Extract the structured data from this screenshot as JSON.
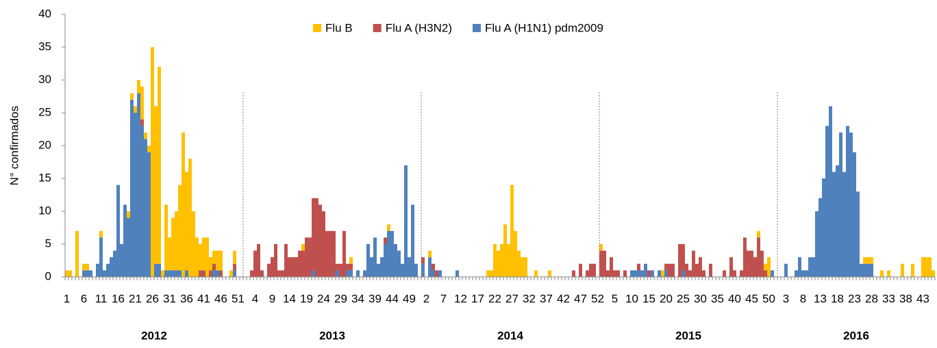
{
  "chart_data": {
    "type": "stacked_bar",
    "y_label": "N° confirmados",
    "ylim": [
      0,
      40
    ],
    "yticks": [
      0,
      5,
      10,
      15,
      20,
      25,
      30,
      35,
      40
    ],
    "legend_position": "top",
    "year_labels": [
      "2012",
      "2013",
      "2014",
      "2015",
      "2016"
    ],
    "categories": [
      "1",
      null,
      null,
      null,
      null,
      "6",
      null,
      null,
      null,
      null,
      "11",
      null,
      null,
      null,
      null,
      "16",
      null,
      null,
      null,
      null,
      "21",
      null,
      null,
      null,
      null,
      "26",
      null,
      null,
      null,
      null,
      "31",
      null,
      null,
      null,
      null,
      "36",
      null,
      null,
      null,
      null,
      "41",
      null,
      null,
      null,
      null,
      "46",
      null,
      null,
      null,
      null,
      "51",
      null,
      null,
      null,
      null,
      "4",
      null,
      null,
      null,
      null,
      "9",
      null,
      null,
      null,
      null,
      "14",
      null,
      null,
      null,
      null,
      "19",
      null,
      null,
      null,
      null,
      "24",
      null,
      null,
      null,
      null,
      "29",
      null,
      null,
      null,
      null,
      "34",
      null,
      null,
      null,
      null,
      "39",
      null,
      null,
      null,
      null,
      "44",
      null,
      null,
      null,
      null,
      "49",
      null,
      null,
      null,
      null,
      "2",
      null,
      null,
      null,
      null,
      "7",
      null,
      null,
      null,
      null,
      "12",
      null,
      null,
      null,
      null,
      "17",
      null,
      null,
      null,
      null,
      "22",
      null,
      null,
      null,
      null,
      "27",
      null,
      null,
      null,
      null,
      "32",
      null,
      null,
      null,
      null,
      "37",
      null,
      null,
      null,
      null,
      "42",
      null,
      null,
      null,
      null,
      "47",
      null,
      null,
      null,
      null,
      "52",
      null,
      null,
      null,
      null,
      "5",
      null,
      null,
      null,
      null,
      "10",
      null,
      null,
      null,
      null,
      "15",
      null,
      null,
      null,
      null,
      "20",
      null,
      null,
      null,
      null,
      "25",
      null,
      null,
      null,
      null,
      "30",
      null,
      null,
      null,
      null,
      "35",
      null,
      null,
      null,
      null,
      "40",
      null,
      null,
      null,
      null,
      "45",
      null,
      null,
      null,
      null,
      "50",
      null,
      null,
      null,
      null,
      "3",
      null,
      null,
      null,
      null,
      "8",
      null,
      null,
      null,
      null,
      "13",
      null,
      null,
      null,
      null,
      "18",
      null,
      null,
      null,
      null,
      "23",
      null,
      null,
      null,
      null,
      "28",
      null,
      null,
      null,
      null,
      "33",
      null,
      null,
      null,
      null,
      "38",
      null,
      null,
      null,
      null,
      "43",
      null,
      null,
      null
    ],
    "series": [
      {
        "name": "Flu B",
        "color": "#FFC000",
        "values": [
          1,
          1,
          0,
          7,
          0,
          1,
          1,
          0,
          0,
          0,
          1,
          0,
          0,
          0,
          0,
          0,
          0,
          0,
          1,
          1,
          1,
          2,
          5,
          1,
          1,
          35,
          24,
          30,
          1,
          10,
          5,
          8,
          9,
          13,
          22,
          15,
          18,
          10,
          6,
          4,
          5,
          6,
          2,
          2,
          3,
          3,
          0,
          0,
          1,
          2,
          0,
          0,
          0,
          0,
          0,
          0,
          0,
          0,
          0,
          0,
          0,
          0,
          0,
          0,
          0,
          0,
          0,
          0,
          0,
          1,
          0,
          0,
          0,
          0,
          0,
          0,
          0,
          0,
          0,
          0,
          0,
          0,
          0,
          1,
          0,
          0,
          0,
          0,
          0,
          0,
          0,
          0,
          0,
          0,
          1,
          0,
          0,
          0,
          0,
          0,
          0,
          0,
          0,
          0,
          0,
          0,
          1,
          0,
          0,
          0,
          0,
          0,
          0,
          0,
          0,
          0,
          0,
          0,
          0,
          0,
          0,
          0,
          0,
          1,
          1,
          5,
          4,
          5,
          8,
          5,
          14,
          7,
          4,
          3,
          3,
          0,
          0,
          1,
          0,
          0,
          0,
          1,
          0,
          0,
          0,
          0,
          0,
          0,
          0,
          0,
          0,
          0,
          0,
          0,
          0,
          0,
          1,
          0,
          0,
          0,
          0,
          0,
          0,
          0,
          0,
          0,
          0,
          0,
          0,
          0,
          0,
          0,
          0,
          0,
          1,
          0,
          0,
          0,
          0,
          0,
          0,
          0,
          0,
          0,
          0,
          0,
          0,
          0,
          0,
          0,
          0,
          0,
          0,
          0,
          0,
          0,
          0,
          0,
          0,
          0,
          0,
          0,
          1,
          0,
          1,
          3,
          0,
          0,
          0,
          0,
          0,
          0,
          0,
          0,
          0,
          0,
          0,
          0,
          0,
          0,
          0,
          0,
          0,
          0,
          0,
          0,
          0,
          0,
          0,
          0,
          0,
          0,
          0,
          1,
          1,
          1,
          0,
          0,
          1,
          0,
          1,
          0,
          0,
          0,
          2,
          0,
          0,
          2,
          0,
          0,
          3,
          3,
          3,
          1
        ]
      },
      {
        "name": "Flu A (H3N2)",
        "color": "#C0504D",
        "values": [
          0,
          0,
          0,
          0,
          0,
          0,
          0,
          0,
          0,
          0,
          0,
          0,
          0,
          0,
          0,
          0,
          0,
          0,
          0,
          0,
          0,
          0,
          1,
          0,
          0,
          0,
          0,
          0,
          0,
          0,
          0,
          0,
          0,
          0,
          0,
          0,
          0,
          0,
          0,
          1,
          1,
          0,
          1,
          1,
          0,
          1,
          0,
          0,
          0,
          1,
          0,
          0,
          0,
          0,
          1,
          4,
          5,
          1,
          0,
          2,
          3,
          5,
          1,
          1,
          5,
          3,
          3,
          3,
          4,
          4,
          6,
          6,
          11,
          12,
          11,
          10,
          7,
          7,
          7,
          1,
          2,
          7,
          1,
          1,
          0,
          0,
          0,
          0,
          0,
          0,
          0,
          0,
          0,
          1,
          0,
          0,
          0,
          0,
          0,
          0,
          0,
          0,
          0,
          0,
          1,
          0,
          0,
          1,
          1,
          0,
          0,
          0,
          0,
          0,
          0,
          0,
          0,
          0,
          0,
          0,
          0,
          0,
          0,
          0,
          0,
          0,
          0,
          0,
          0,
          0,
          0,
          0,
          0,
          0,
          0,
          0,
          0,
          0,
          0,
          0,
          0,
          0,
          0,
          0,
          0,
          0,
          0,
          0,
          1,
          0,
          2,
          0,
          1,
          2,
          2,
          0,
          4,
          4,
          1,
          3,
          1,
          1,
          0,
          1,
          0,
          0,
          0,
          1,
          0,
          0,
          1,
          0,
          0,
          0,
          0,
          1,
          2,
          2,
          0,
          5,
          4,
          2,
          1,
          4,
          2,
          3,
          1,
          0,
          2,
          0,
          0,
          0,
          1,
          0,
          3,
          1,
          0,
          1,
          6,
          4,
          4,
          3,
          6,
          4,
          1,
          0,
          0,
          0,
          0,
          0,
          0,
          0,
          0,
          0,
          0,
          0,
          0,
          0,
          0,
          0,
          0,
          0,
          0,
          0,
          0,
          0,
          0,
          0,
          0,
          0,
          0,
          0,
          0,
          0,
          0,
          0,
          0,
          0,
          0,
          0,
          0,
          0,
          0,
          0,
          0,
          0,
          0,
          0,
          0,
          0,
          0,
          0,
          0,
          0
        ]
      },
      {
        "name": "Flu A (H1N1) pdm2009",
        "color": "#4F81BD",
        "values": [
          0,
          0,
          0,
          0,
          0,
          1,
          1,
          1,
          0,
          2,
          6,
          1,
          2,
          3,
          4,
          14,
          5,
          11,
          9,
          27,
          25,
          28,
          23,
          21,
          19,
          0,
          2,
          2,
          0,
          1,
          1,
          1,
          1,
          1,
          0,
          1,
          0,
          0,
          0,
          0,
          0,
          0,
          0,
          1,
          1,
          0,
          0,
          0,
          0,
          1,
          0,
          0,
          0,
          0,
          0,
          0,
          0,
          0,
          0,
          0,
          0,
          0,
          0,
          0,
          0,
          0,
          0,
          0,
          0,
          0,
          0,
          0,
          1,
          0,
          0,
          0,
          0,
          0,
          0,
          1,
          0,
          0,
          1,
          1,
          0,
          1,
          0,
          1,
          5,
          3,
          6,
          2,
          3,
          5,
          7,
          7,
          5,
          4,
          2,
          17,
          3,
          11,
          2,
          0,
          2,
          0,
          3,
          1,
          0,
          1,
          0,
          0,
          0,
          0,
          1,
          0,
          0,
          0,
          0,
          0,
          0,
          0,
          0,
          0,
          0,
          0,
          0,
          0,
          0,
          0,
          0,
          0,
          0,
          0,
          0,
          0,
          0,
          0,
          0,
          0,
          0,
          0,
          0,
          0,
          0,
          0,
          0,
          0,
          0,
          0,
          0,
          0,
          0,
          0,
          0,
          0,
          0,
          0,
          0,
          0,
          0,
          0,
          0,
          0,
          0,
          1,
          1,
          1,
          1,
          2,
          0,
          1,
          0,
          1,
          0,
          1,
          0,
          0,
          0,
          0,
          1,
          0,
          0,
          0,
          0,
          0,
          0,
          0,
          0,
          0,
          0,
          0,
          0,
          0,
          0,
          0,
          0,
          0,
          0,
          0,
          0,
          0,
          0,
          0,
          0,
          0,
          1,
          0,
          0,
          0,
          2,
          0,
          0,
          1,
          3,
          1,
          1,
          3,
          3,
          10,
          12,
          15,
          23,
          26,
          16,
          17,
          22,
          16,
          23,
          22,
          19,
          13,
          2,
          2,
          2,
          2,
          0,
          0,
          0,
          0,
          0,
          0,
          0,
          0,
          0,
          0,
          0,
          0,
          0,
          0,
          0,
          0,
          0,
          0
        ]
      }
    ]
  }
}
